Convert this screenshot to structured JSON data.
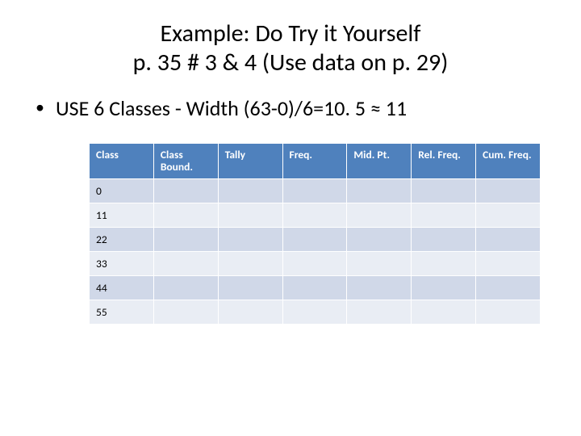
{
  "title_line1": "Example: Do Try it Yourself",
  "title_line2": "p. 35 # 3 & 4  (Use data on p. 29)",
  "bullet_text": "USE 6 Classes  -   Width (63-0)/6=10. 5 ≈ 11",
  "table": {
    "type": "table",
    "header_bg": "#4f81bd",
    "header_text_color": "#ffffff",
    "row_colors": [
      "#d0d8e8",
      "#e9edf4"
    ],
    "border_color": "#ffffff",
    "font_size": 13.5,
    "columns": [
      {
        "label": "Class"
      },
      {
        "label": "Class Bound."
      },
      {
        "label": "Tally"
      },
      {
        "label": "Freq."
      },
      {
        "label": "Mid. Pt."
      },
      {
        "label": "Rel. Freq."
      },
      {
        "label": "Cum. Freq."
      }
    ],
    "rows": [
      {
        "class": "0",
        "class_bound": "",
        "tally": "",
        "freq": "",
        "mid_pt": "",
        "rel_freq": "",
        "cum_freq": ""
      },
      {
        "class": "11",
        "class_bound": "",
        "tally": "",
        "freq": "",
        "mid_pt": "",
        "rel_freq": "",
        "cum_freq": ""
      },
      {
        "class": "22",
        "class_bound": "",
        "tally": "",
        "freq": "",
        "mid_pt": "",
        "rel_freq": "",
        "cum_freq": ""
      },
      {
        "class": "33",
        "class_bound": "",
        "tally": "",
        "freq": "",
        "mid_pt": "",
        "rel_freq": "",
        "cum_freq": ""
      },
      {
        "class": "44",
        "class_bound": "",
        "tally": "",
        "freq": "",
        "mid_pt": "",
        "rel_freq": "",
        "cum_freq": ""
      },
      {
        "class": "55",
        "class_bound": "",
        "tally": "",
        "freq": "",
        "mid_pt": "",
        "rel_freq": "",
        "cum_freq": ""
      }
    ]
  }
}
